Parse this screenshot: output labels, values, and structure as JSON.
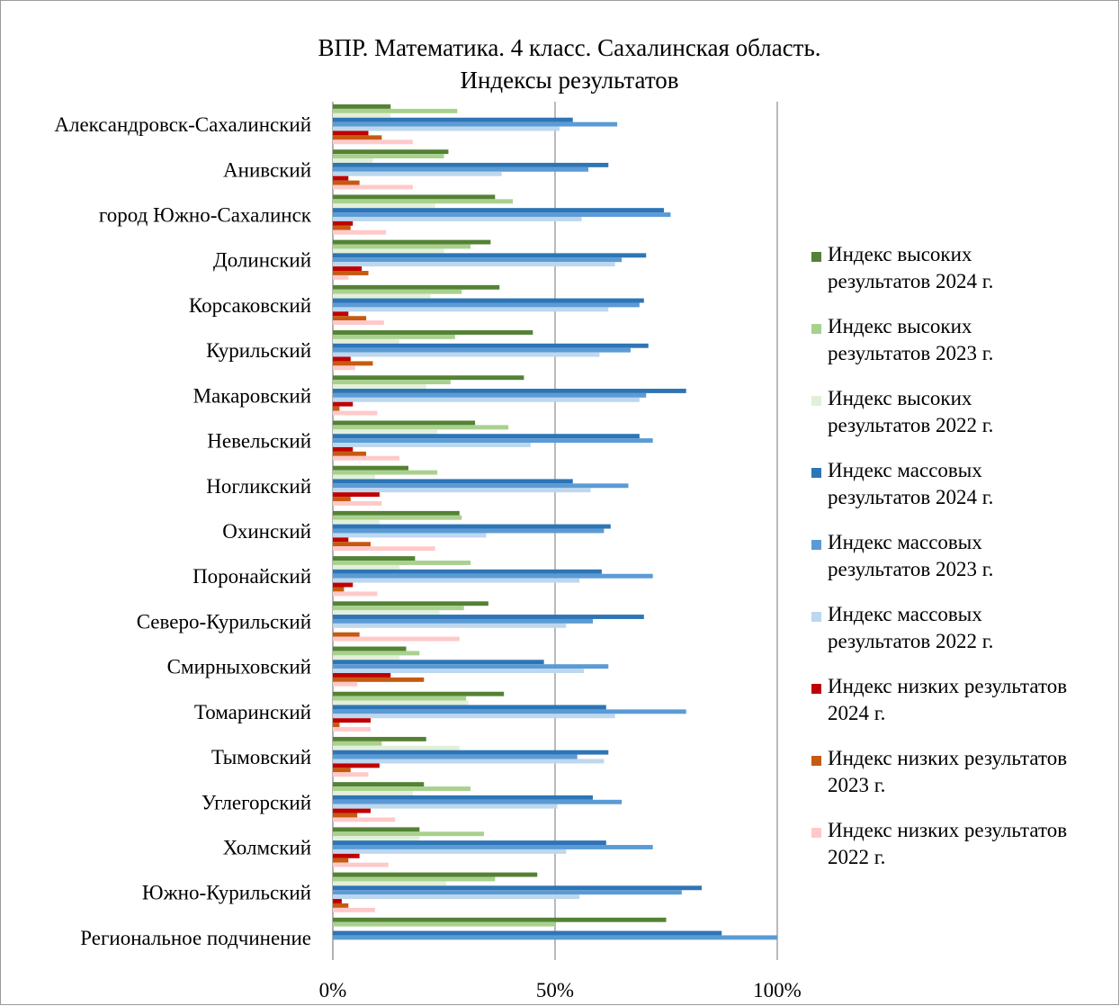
{
  "chart_data": {
    "type": "bar",
    "orientation": "horizontal",
    "title_lines": [
      "ВПР. Математика. 4 класс. Сахалинская область.",
      "Индексы результатов"
    ],
    "categories": [
      "Александровск-Сахалинский",
      "Анивский",
      "город Южно-Сахалинск",
      "Долинский",
      "Корсаковский",
      "Курильский",
      "Макаровский",
      "Невельский",
      "Ногликский",
      "Охинский",
      "Поронайский",
      "Северо-Курильский",
      "Смирныховский",
      "Томаринский",
      "Тымовский",
      "Углегорский",
      "Холмский",
      "Южно-Курильский",
      "Региональное подчинение"
    ],
    "series": [
      {
        "name": "Индекс высоких результатов 2024 г.",
        "color": "#548235",
        "values": [
          13,
          26,
          36.5,
          35.5,
          37.5,
          45,
          43,
          32,
          17,
          28.5,
          18.5,
          35,
          16.5,
          38.5,
          21,
          20.5,
          19.5,
          46,
          75
        ]
      },
      {
        "name": "Индекс высоких результатов 2023 г.",
        "color": "#a9d18e",
        "values": [
          28,
          25,
          40.5,
          31,
          29,
          27.5,
          26.5,
          39.5,
          23.5,
          29,
          31,
          29.5,
          19.5,
          30,
          11,
          31,
          34,
          36.5,
          50
        ]
      },
      {
        "name": "Индекс высоких результатов 2022 г.",
        "color": "#e2f0d9",
        "values": [
          13,
          9,
          23,
          25,
          22,
          15,
          21,
          23.5,
          9.5,
          10.5,
          15,
          24,
          15,
          30.5,
          28.5,
          18,
          19.5,
          25.5,
          0
        ]
      },
      {
        "name": "Индекс массовых результатов 2024 г.",
        "color": "#2e75b6",
        "values": [
          54,
          62,
          74.5,
          70.5,
          70,
          71,
          79.5,
          69,
          54,
          62.5,
          60.5,
          70,
          47.5,
          61.5,
          62,
          58.5,
          61.5,
          83,
          87.5
        ]
      },
      {
        "name": "Индекс массовых результатов 2023 г.",
        "color": "#5b9bd5",
        "values": [
          64,
          57.5,
          76,
          65,
          69,
          67,
          70.5,
          72,
          66.5,
          61,
          72,
          58.5,
          62,
          79.5,
          55,
          65,
          72,
          78.5,
          100
        ]
      },
      {
        "name": "Индекс массовых результатов 2022 г.",
        "color": "#bdd7ee",
        "values": [
          51,
          38,
          56,
          63.5,
          62,
          60,
          69,
          44.5,
          58,
          34.5,
          55.5,
          52.5,
          56.5,
          63.5,
          61,
          50.5,
          52.5,
          55.5,
          0
        ]
      },
      {
        "name": "Индекс низких результатов 2024 г.",
        "color": "#c00000",
        "values": [
          8,
          3.5,
          4.5,
          6.5,
          3.5,
          4,
          4.5,
          4.5,
          10.5,
          3.5,
          4.5,
          0,
          13,
          8.5,
          10.5,
          8.5,
          6,
          2,
          0
        ]
      },
      {
        "name": "Индекс низких результатов 2023 г.",
        "color": "#c55a11",
        "values": [
          11,
          6,
          4,
          8,
          7.5,
          9,
          1.5,
          7.5,
          4,
          8.5,
          2.5,
          6,
          20.5,
          1.5,
          4,
          5.5,
          3.5,
          3.5,
          0
        ]
      },
      {
        "name": "Индекс низких результатов 2022 г.",
        "color": "#ffc9c9",
        "values": [
          18,
          18,
          12,
          3.5,
          11.5,
          5,
          10,
          15,
          11,
          23,
          10,
          28.5,
          5.5,
          8.5,
          8,
          14,
          12.5,
          9.5,
          0
        ]
      }
    ],
    "legend_lines": [
      [
        "Индекс высоких",
        "результатов 2024 г."
      ],
      [
        "Индекс высоких",
        "результатов 2023 г."
      ],
      [
        "Индекс высоких",
        "результатов 2022 г."
      ],
      [
        "Индекс массовых",
        "результатов 2024 г."
      ],
      [
        "Индекс массовых",
        "результатов 2023 г."
      ],
      [
        "Индекс массовых",
        "результатов 2022 г."
      ],
      [
        "Индекс низких результатов",
        "2024 г."
      ],
      [
        "Индекс низких результатов",
        "2023 г."
      ],
      [
        "Индекс низких результатов",
        "2022 г."
      ]
    ],
    "x_ticks": [
      0,
      50,
      100
    ],
    "x_tick_labels": [
      "0%",
      "50%",
      "100%"
    ],
    "xlim": [
      0,
      100
    ],
    "gridlines": "vertical",
    "legend_position": "right",
    "xlabel": "",
    "ylabel": ""
  }
}
